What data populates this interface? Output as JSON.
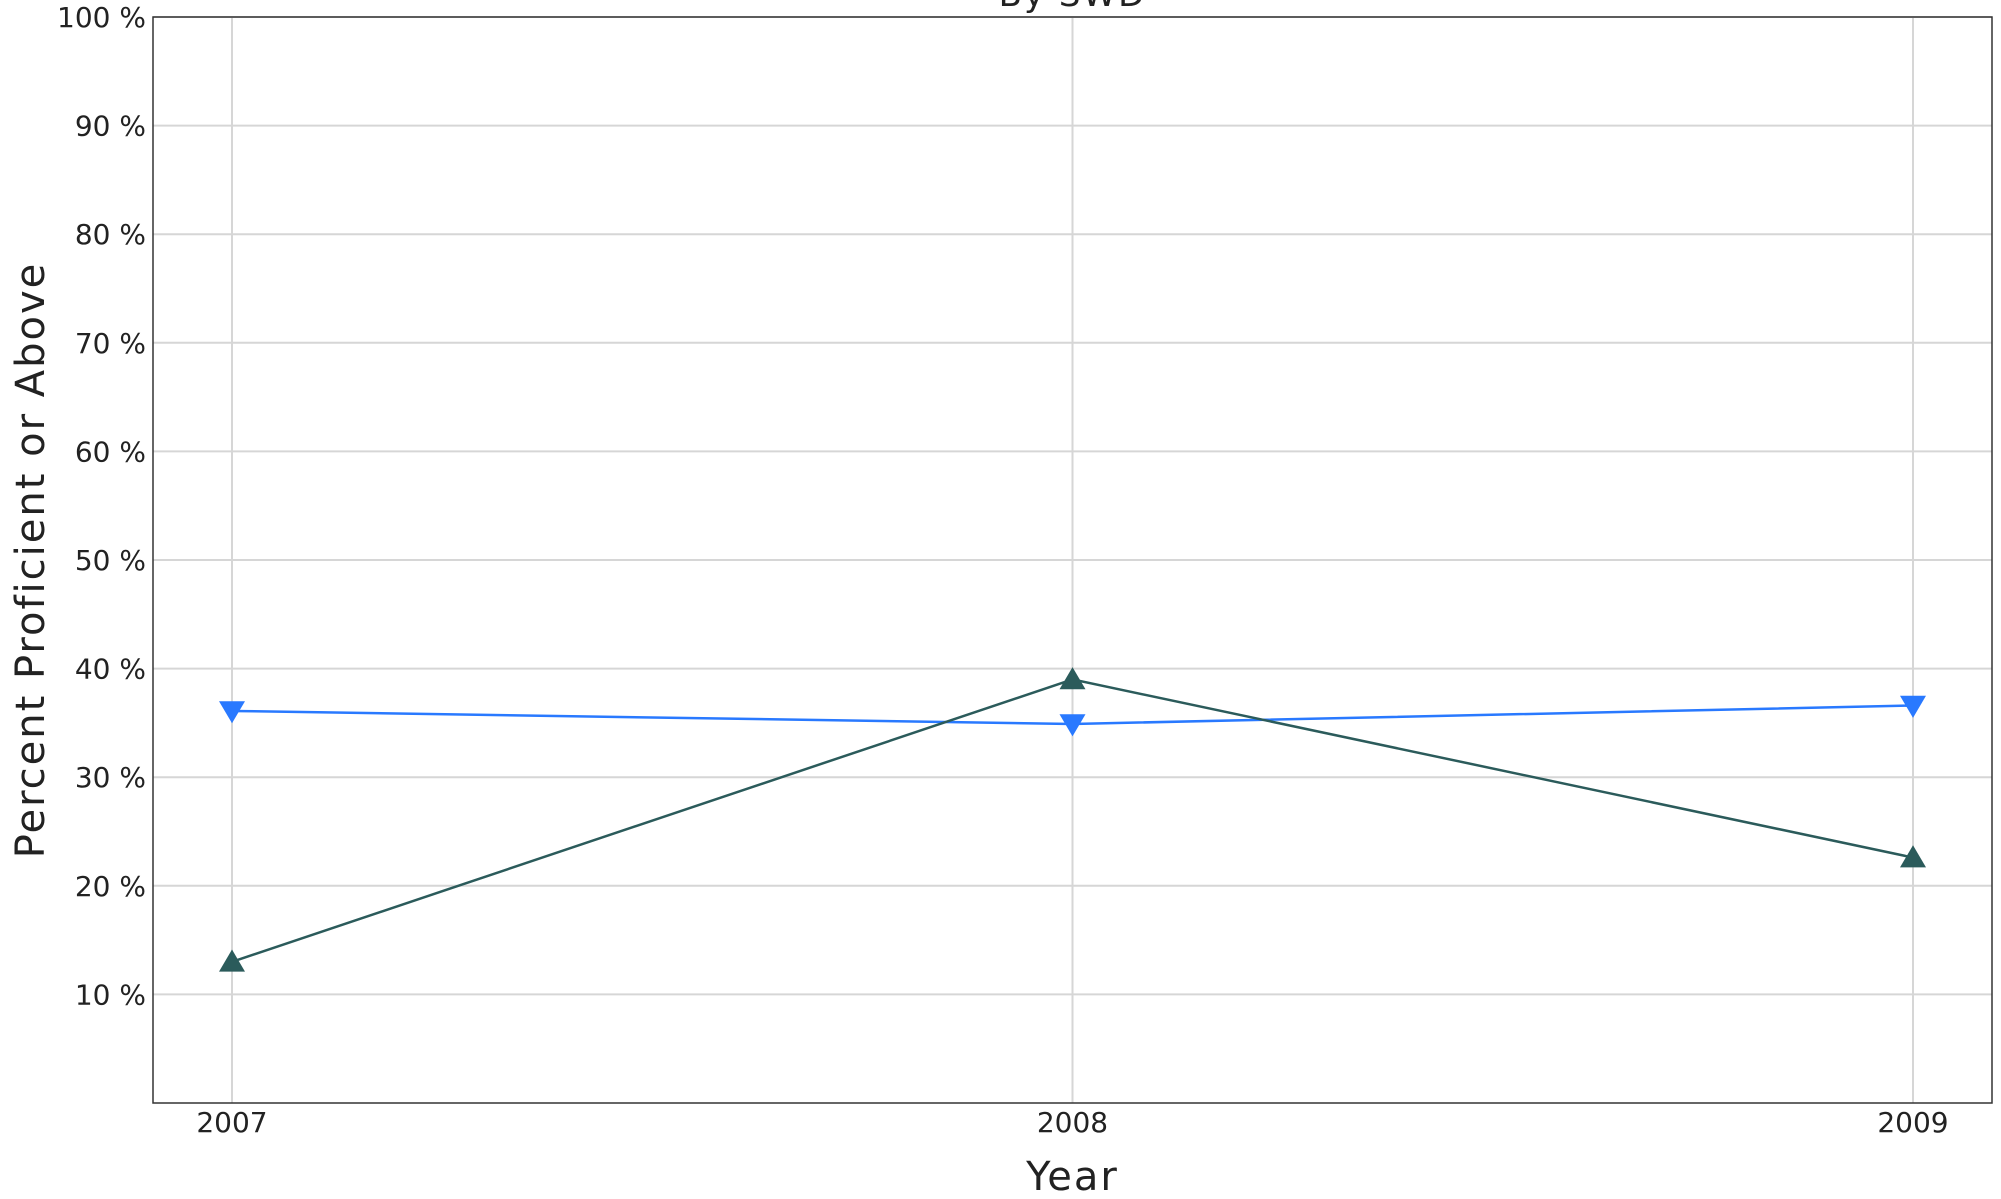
{
  "chart_data": {
    "type": "line",
    "title": "By SWD",
    "xlabel": "Year",
    "ylabel": "Percent Proficient or Above",
    "x": [
      "2007",
      "2008",
      "2009"
    ],
    "ylim": [
      0,
      100
    ],
    "yticks": [
      10,
      20,
      30,
      40,
      50,
      60,
      70,
      80,
      90,
      100
    ],
    "ytick_labels": [
      "10 %",
      "20 %",
      "30 %",
      "40 %",
      "50 %",
      "60 %",
      "70 %",
      "80 %",
      "90 %",
      "100 %"
    ],
    "grid": true,
    "legend": "none",
    "series": [
      {
        "color": "#2979ff",
        "marker": "triangle-down",
        "values": [
          36.1,
          34.9,
          36.6
        ]
      },
      {
        "color": "#2b5b5b",
        "marker": "triangle-up",
        "values": [
          13.0,
          39.0,
          22.6
        ]
      }
    ]
  }
}
